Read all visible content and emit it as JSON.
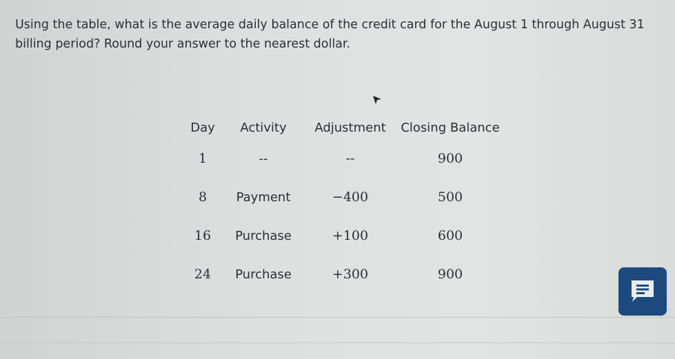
{
  "question": "Using the table, what is the average daily balance of the credit card for the August 1 through August 31 billing period? Round your answer to the nearest dollar.",
  "table": {
    "headers": [
      "Day",
      "Activity",
      "Adjustment",
      "Closing Balance"
    ],
    "rows": [
      [
        "1",
        "--",
        "--",
        "900"
      ],
      [
        "8",
        "Payment",
        "−400",
        "500"
      ],
      [
        "16",
        "Purchase",
        "+100",
        "600"
      ],
      [
        "24",
        "Purchase",
        "+300",
        "900"
      ]
    ]
  },
  "chat_button": {
    "icon": "chat-message-icon",
    "color": "#1d4a7e"
  }
}
